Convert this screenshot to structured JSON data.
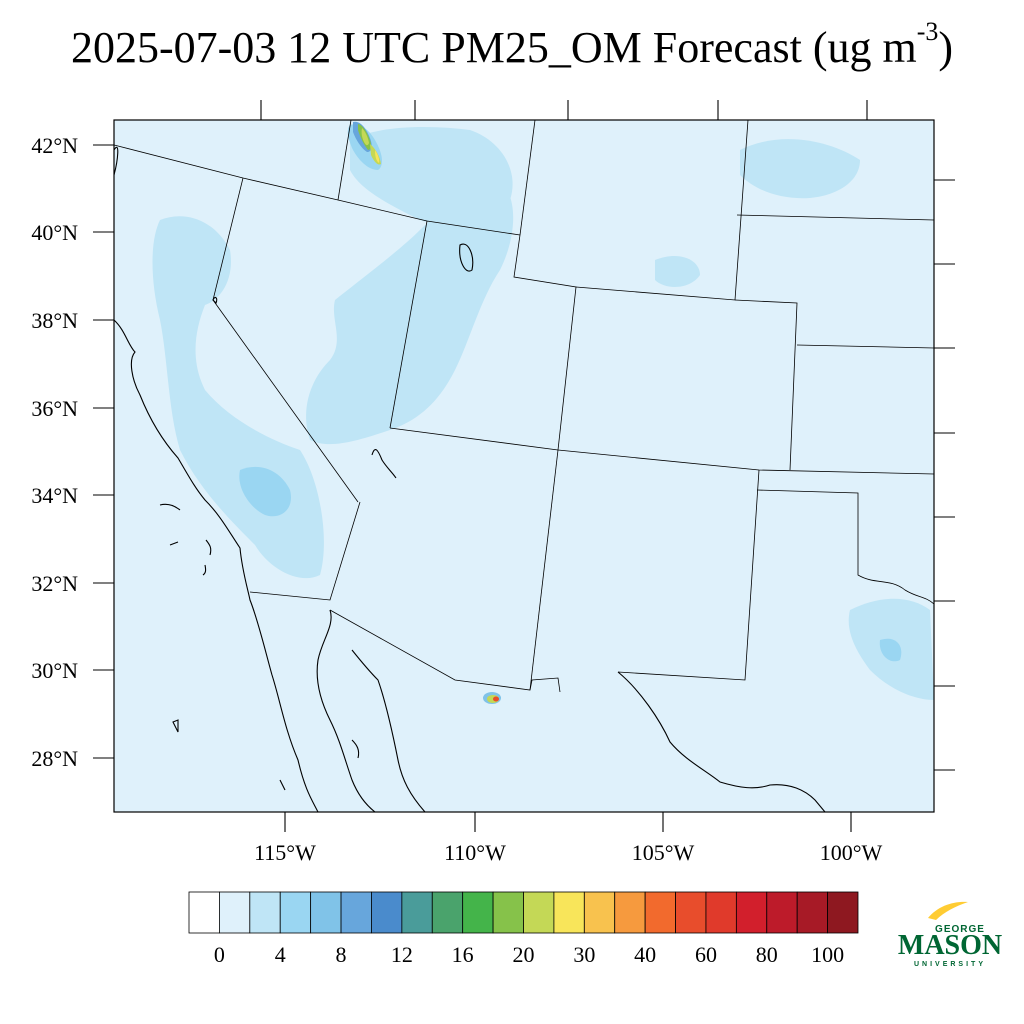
{
  "title": {
    "main": "2025-07-03 12 UTC PM25_OM Forecast (ug m",
    "superscript": "-3",
    "close": ")"
  },
  "map": {
    "lat_labels": [
      "42°N",
      "40°N",
      "38°N",
      "36°N",
      "34°N",
      "32°N",
      "30°N",
      "28°N"
    ],
    "lon_labels": [
      "115°W",
      "110°W",
      "105°W",
      "100°W"
    ],
    "background_color": "#dff1fb",
    "light_plume_color": "#bfe5f6",
    "medium_plume_color": "#9ad6f2"
  },
  "colorbar": {
    "colors": [
      "#ffffff",
      "#dff1fb",
      "#bfe5f6",
      "#9ad6f2",
      "#80c3e8",
      "#67a6dc",
      "#4a8bcc",
      "#4a9c9a",
      "#4aa36c",
      "#44b44a",
      "#86c24a",
      "#c4d856",
      "#f8e55a",
      "#f8c24e",
      "#f69a3e",
      "#f26a2d",
      "#e84d2c",
      "#e03a2b",
      "#d21f2c",
      "#bd1b2a",
      "#a71a26",
      "#8e1820"
    ],
    "labels": [
      "0",
      "4",
      "8",
      "12",
      "16",
      "20",
      "30",
      "40",
      "60",
      "80",
      "100"
    ]
  },
  "logo": {
    "line1": "GEORGE",
    "line2": "MASON",
    "line3": "UNIVERSITY",
    "green": "#006633",
    "gold": "#ffcc33"
  }
}
